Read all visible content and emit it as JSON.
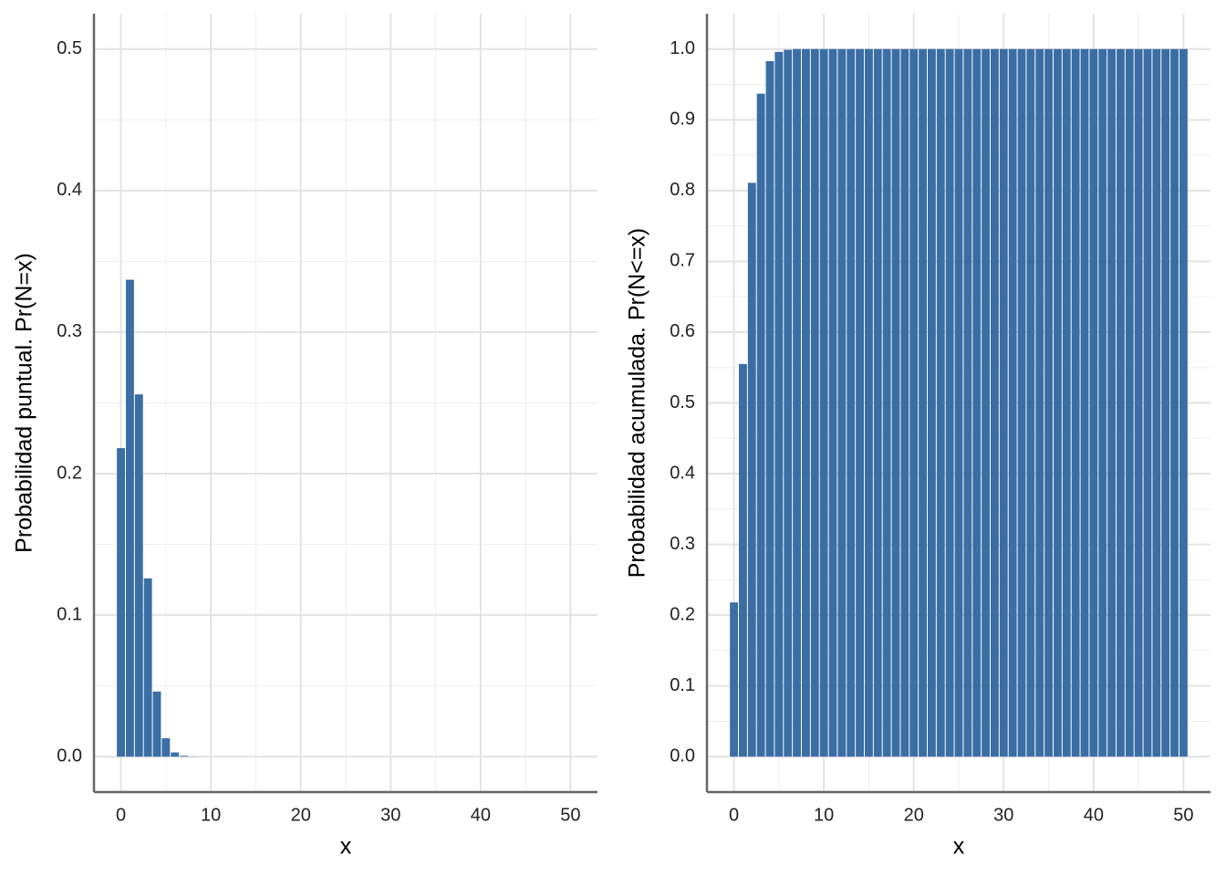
{
  "chart_data": [
    {
      "type": "bar",
      "x_label": "x",
      "y_label": "Probabilidad puntual. Pr(N=x)",
      "x": [
        0,
        1,
        2,
        3,
        4,
        5,
        6,
        7,
        8,
        9,
        10,
        11,
        12,
        13,
        14,
        15,
        16,
        17,
        18,
        19,
        20,
        21,
        22,
        23,
        24,
        25,
        26,
        27,
        28,
        29,
        30,
        31,
        32,
        33,
        34,
        35,
        36,
        37,
        38,
        39,
        40,
        41,
        42,
        43,
        44,
        45,
        46,
        47,
        48,
        49,
        50
      ],
      "values": [
        0.218,
        0.337,
        0.256,
        0.126,
        0.046,
        0.013,
        0.003,
        0.0006,
        0.0001,
        0,
        0,
        0,
        0,
        0,
        0,
        0,
        0,
        0,
        0,
        0,
        0,
        0,
        0,
        0,
        0,
        0,
        0,
        0,
        0,
        0,
        0,
        0,
        0,
        0,
        0,
        0,
        0,
        0,
        0,
        0,
        0,
        0,
        0,
        0,
        0,
        0,
        0,
        0,
        0,
        0,
        0
      ],
      "color": "#3b6ea5",
      "xlim": [
        -3,
        53
      ],
      "xticks": [
        0,
        10,
        20,
        30,
        40,
        50
      ],
      "ylim": [
        -0.025,
        0.525
      ],
      "yticks": [
        {
          "value": 0,
          "label": "0.0"
        },
        0.1,
        0.2,
        0.3,
        0.4,
        0.5
      ],
      "grid": true
    },
    {
      "type": "bar",
      "x_label": "x",
      "y_label": "Probabilidad acumulada. Pr(N<=x)",
      "x": [
        0,
        1,
        2,
        3,
        4,
        5,
        6,
        7,
        8,
        9,
        10,
        11,
        12,
        13,
        14,
        15,
        16,
        17,
        18,
        19,
        20,
        21,
        22,
        23,
        24,
        25,
        26,
        27,
        28,
        29,
        30,
        31,
        32,
        33,
        34,
        35,
        36,
        37,
        38,
        39,
        40,
        41,
        42,
        43,
        44,
        45,
        46,
        47,
        48,
        49,
        50
      ],
      "values": [
        0.218,
        0.555,
        0.811,
        0.937,
        0.983,
        0.996,
        0.999,
        1,
        1,
        1,
        1,
        1,
        1,
        1,
        1,
        1,
        1,
        1,
        1,
        1,
        1,
        1,
        1,
        1,
        1,
        1,
        1,
        1,
        1,
        1,
        1,
        1,
        1,
        1,
        1,
        1,
        1,
        1,
        1,
        1,
        1,
        1,
        1,
        1,
        1,
        1,
        1,
        1,
        1,
        1,
        1
      ],
      "color": "#3b6ea5",
      "xlim": [
        -3,
        53
      ],
      "xticks": [
        0,
        10,
        20,
        30,
        40,
        50
      ],
      "ylim": [
        -0.05,
        1.05
      ],
      "yticks": [
        {
          "value": 0,
          "label": "0.0"
        },
        0.1,
        0.2,
        0.3,
        0.4,
        0.5,
        0.6,
        0.7,
        0.8,
        0.9,
        {
          "value": 1,
          "label": "1.0"
        }
      ],
      "grid": true
    }
  ]
}
